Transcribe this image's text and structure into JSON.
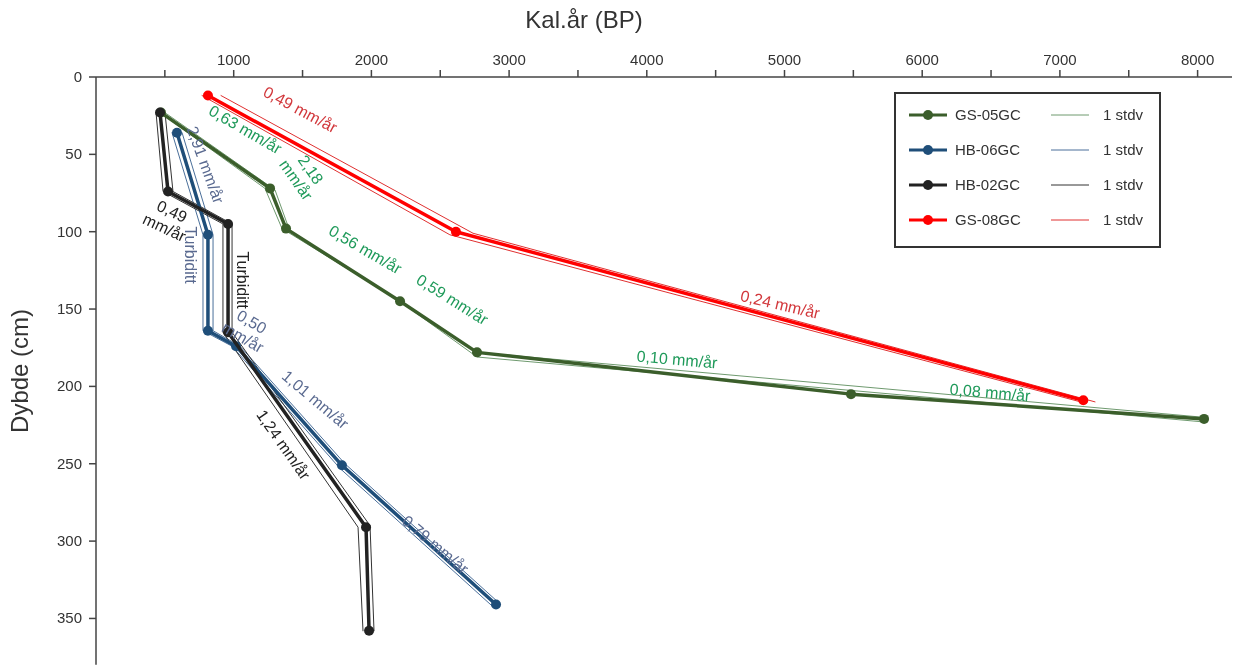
{
  "chart_data": {
    "type": "line",
    "xlabel": "Kal.år (BP)",
    "ylabel": "Dybde (cm)",
    "xlim": [
      0,
      8250
    ],
    "xticks": [
      {
        "value": 500,
        "label": null
      },
      1000,
      {
        "value": 1500,
        "label": null
      },
      2000,
      {
        "value": 2500,
        "label": null
      },
      3000,
      {
        "value": 3500,
        "label": null
      },
      4000,
      {
        "value": 4500,
        "label": null
      },
      5000,
      {
        "value": 5500,
        "label": null
      },
      6000,
      {
        "value": 6500,
        "label": null
      },
      7000,
      {
        "value": 7500,
        "label": null
      },
      8000
    ],
    "ylim": [
      380,
      0
    ],
    "yticks": [
      0,
      50,
      100,
      150,
      200,
      250,
      300,
      350
    ],
    "grid": false,
    "legend": "top right",
    "marker": "circle",
    "line_style": "solid",
    "series": [
      {
        "name": "GS-05GC",
        "color": "#3b5e2b",
        "x": [
          472,
          1264,
          1380,
          2208,
          2767,
          5483,
          8047
        ],
        "values": [
          23,
          72,
          98,
          145,
          178,
          205,
          221
        ]
      },
      {
        "name": "HB-06GC",
        "color": "#1f4e79",
        "x": [
          588,
          813,
          813,
          1017,
          1786,
          2905
        ],
        "values": [
          36,
          102,
          164,
          174,
          251,
          341
        ]
      },
      {
        "name": "HB-02GC",
        "color": "#222222",
        "x": [
          465,
          523,
          959,
          959,
          1961,
          1983
        ],
        "values": [
          23,
          74,
          95,
          165,
          291,
          358
        ]
      },
      {
        "name": "GS-08GC",
        "color": "#ff0000",
        "x": [
          813,
          2614,
          7170
        ],
        "values": [
          12,
          100,
          209
        ]
      },
      {
        "name": "1 stdv",
        "color": "#6f9a6f",
        "marker": "none",
        "x": [
          500,
          1300,
          1409,
          2222,
          2767,
          8047,
          null,
          465,
          1227,
          1351,
          2193,
          2767,
          8047
        ],
        "values": [
          23,
          73,
          100,
          146,
          181,
          223,
          null,
          23,
          72,
          98,
          144,
          178,
          220
        ]
      },
      {
        "name": "1 stdv",
        "color": "#4a6f9a",
        "marker": "none",
        "x": [
          552,
          777,
          777,
          988,
          1772,
          2890,
          null,
          625,
          850,
          850,
          1046,
          1808,
          2927
        ],
        "values": [
          36,
          102,
          164,
          174,
          253,
          343,
          null,
          36,
          102,
          164,
          174,
          250,
          340
        ]
      },
      {
        "name": "1 stdv",
        "color": "#333333",
        "marker": "none",
        "x": [
          501,
          559,
          988,
          988,
          1990,
          2019,
          null,
          436,
          487,
          922,
          922,
          1903,
          1939
        ],
        "values": [
          23,
          74,
          95,
          165,
          290,
          358,
          null,
          23,
          74,
          95,
          165,
          291,
          358
        ]
      },
      {
        "name": "1 stdv",
        "color": "#e03030",
        "marker": "none",
        "x": [
          908,
          2738,
          7255,
          null,
          770,
          2570,
          7150
        ],
        "values": [
          12,
          101,
          210,
          null,
          12,
          102,
          210
        ]
      }
    ],
    "annotations": [
      "0,49 mm/år",
      "0,24 mm/år",
      "0,63 mm/år",
      "2,18 mm/år",
      "0,56 mm/år",
      "0,59 mm/år",
      "0,10 mm/år",
      "0,08 mm/år",
      "2,91 mm/år",
      "Turbiditt",
      "0,50 mm/år",
      "1,01 mm/år",
      "0,79 mm/år",
      "0,49 mm/år",
      "Turbiditt",
      "1,24 mm/år"
    ]
  }
}
